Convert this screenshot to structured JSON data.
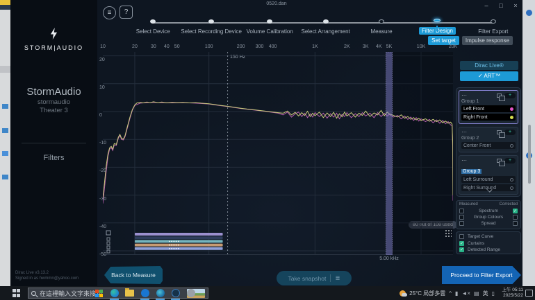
{
  "window": {
    "title": "0520.dan"
  },
  "icons": {
    "menu": "≡",
    "help": "?",
    "minimize": "–",
    "maximize": "□",
    "close": "×",
    "check": "✓",
    "ellipsis": "⋯",
    "plus": "+",
    "snapshot_list": "≣",
    "caret": "^",
    "battery": "▮",
    "mute": "◄×",
    "keyboard": "▤",
    "notebook": "▯"
  },
  "sidebar": {
    "brand": "STORM|AUDIO",
    "title": "StormAudio",
    "subtitle": "stormaudio",
    "theater": "Theater 3",
    "nav_filters": "Filters",
    "version": "Dirac Live v3.13.2",
    "signed_in": "Signed in as hwmmn@yahoo.com"
  },
  "stepper": {
    "steps": [
      {
        "label": "Select Device",
        "status": "done"
      },
      {
        "label": "Select Recording Device",
        "status": "done"
      },
      {
        "label": "Volume Calibration",
        "status": "done"
      },
      {
        "label": "Select Arrangement",
        "status": "done"
      },
      {
        "label": "Measure",
        "status": "todo"
      },
      {
        "label": "Filter Design",
        "status": "current"
      },
      {
        "label": "Filter Export",
        "status": "todo"
      }
    ]
  },
  "subtabs": [
    {
      "label": "Set target",
      "active": true
    },
    {
      "label": "Impulse response",
      "active": false
    }
  ],
  "chart_data": {
    "type": "line",
    "x_axis": {
      "scale": "log",
      "unit": "Hz",
      "min": 10,
      "max": 20000,
      "ticks": [
        "10",
        "20",
        "30",
        "40",
        "50",
        "100",
        "200",
        "300",
        "400",
        "1K",
        "2K",
        "3K",
        "4K",
        "5K",
        "10K",
        "20K"
      ],
      "tick_values": [
        10,
        20,
        30,
        40,
        50,
        100,
        200,
        300,
        400,
        1000,
        2000,
        3000,
        4000,
        5000,
        10000,
        20000
      ]
    },
    "y_axis": {
      "unit": "dB",
      "ticks": [
        20,
        10,
        0,
        -10,
        -20,
        -30,
        -40,
        -50
      ],
      "min": -55,
      "max": 25
    },
    "grid_hz": [
      20,
      100,
      1000,
      10000
    ],
    "cursor": {
      "label": "150 Hz",
      "hz": 150
    },
    "marker": {
      "label": "5.00 kHz",
      "hz": 5000
    },
    "usage_badge": "80 out of 108 used",
    "range_bars": {
      "from_hz": 20,
      "to_hz": 135,
      "colors": [
        "#9b90cf",
        "#2e3d5c",
        "#74b4bd",
        "#c79b72",
        "#8fa0d8"
      ]
    },
    "series": [
      {
        "name": "Left Front",
        "color": "#b75fae",
        "points": [
          [
            10,
            -33
          ],
          [
            10.4,
            -27
          ],
          [
            10.8,
            -21
          ],
          [
            11.2,
            -16
          ],
          [
            11.6,
            -13.5
          ],
          [
            12,
            -13
          ],
          [
            12.4,
            -14
          ],
          [
            12.8,
            -12
          ],
          [
            13.4,
            -12.2
          ],
          [
            14,
            -9.6
          ],
          [
            14.5,
            -8.6
          ],
          [
            15,
            -10
          ],
          [
            15.6,
            -10.2
          ],
          [
            16.2,
            -9
          ],
          [
            17,
            -6
          ],
          [
            18,
            -2.5
          ],
          [
            19,
            0.5
          ],
          [
            20,
            2.2
          ],
          [
            22.5,
            3.0
          ],
          [
            26,
            3.2
          ],
          [
            30,
            3.3
          ],
          [
            36,
            3.2
          ],
          [
            45,
            3.1
          ],
          [
            57,
            3.2
          ],
          [
            75,
            3.0
          ],
          [
            100,
            2.7
          ],
          [
            130,
            2.1
          ],
          [
            150,
            1.8
          ],
          [
            200,
            1.1
          ],
          [
            260,
            0.6
          ],
          [
            350,
            0.0
          ],
          [
            450,
            -0.6
          ],
          [
            500,
            -1.2
          ],
          [
            550,
            -0.2
          ],
          [
            600,
            -2.0
          ],
          [
            650,
            -0.8
          ],
          [
            700,
            -0.2
          ],
          [
            750,
            -1.8
          ],
          [
            800,
            -0.6
          ],
          [
            850,
            -2.2
          ],
          [
            900,
            -0.8
          ],
          [
            950,
            -2.0
          ],
          [
            1000,
            -0.4
          ],
          [
            1100,
            -1.8
          ],
          [
            1200,
            -0.6
          ],
          [
            1300,
            -2.4
          ],
          [
            1400,
            -0.8
          ],
          [
            1500,
            -2.0
          ],
          [
            1600,
            -0.6
          ],
          [
            1700,
            -2.6
          ],
          [
            1800,
            -1.0
          ],
          [
            1900,
            -1.8
          ],
          [
            2000,
            -0.4
          ],
          [
            2200,
            -2.2
          ],
          [
            2400,
            -0.8
          ],
          [
            2600,
            -1.8
          ],
          [
            2800,
            -0.4
          ],
          [
            3000,
            -1.6
          ],
          [
            3300,
            -0.6
          ],
          [
            3600,
            -2.2
          ],
          [
            3900,
            -0.4
          ],
          [
            4200,
            -1.8
          ],
          [
            4500,
            -0.6
          ],
          [
            4800,
            -1.6
          ],
          [
            5000,
            -1.0
          ],
          [
            5500,
            -2.0
          ],
          [
            6000,
            -1.4
          ],
          [
            6500,
            -2.6
          ],
          [
            7000,
            -1.6
          ],
          [
            7500,
            -2.8
          ],
          [
            8000,
            -2.0
          ],
          [
            8500,
            -3.2
          ],
          [
            9000,
            -2.2
          ],
          [
            9500,
            -3.4
          ],
          [
            10000,
            -2.6
          ],
          [
            11000,
            -3.6
          ],
          [
            12000,
            -2.8
          ],
          [
            13000,
            -4.0
          ],
          [
            14000,
            -3.0
          ],
          [
            15000,
            -4.2
          ],
          [
            16000,
            -3.2
          ],
          [
            17000,
            -4.4
          ],
          [
            18000,
            -3.6
          ],
          [
            19000,
            -4.8
          ],
          [
            19600,
            -5.0
          ],
          [
            19900,
            -14
          ],
          [
            20000,
            -32
          ]
        ]
      },
      {
        "name": "Right Front",
        "color": "#c9cb79",
        "points": [
          [
            10,
            -31
          ],
          [
            10.4,
            -25
          ],
          [
            10.8,
            -19
          ],
          [
            11.2,
            -15
          ],
          [
            11.6,
            -13
          ],
          [
            12,
            -12.5
          ],
          [
            12.4,
            -13.5
          ],
          [
            12.8,
            -11.5
          ],
          [
            13.4,
            -11.8
          ],
          [
            14,
            -9.2
          ],
          [
            14.5,
            -8.2
          ],
          [
            15,
            -9.6
          ],
          [
            15.6,
            -9.9
          ],
          [
            16.2,
            -8.6
          ],
          [
            17,
            -5.5
          ],
          [
            18,
            -2
          ],
          [
            19,
            0.8
          ],
          [
            20,
            2.4
          ],
          [
            21,
            3.1
          ],
          [
            22.5,
            3.3
          ],
          [
            24,
            3.1
          ],
          [
            26,
            3.4
          ],
          [
            28,
            3.2
          ],
          [
            30,
            3.5
          ],
          [
            33,
            3.2
          ],
          [
            36,
            3.4
          ],
          [
            40,
            3.1
          ],
          [
            45,
            3.3
          ],
          [
            50,
            3.2
          ],
          [
            57,
            3.3
          ],
          [
            65,
            3.1
          ],
          [
            75,
            3.2
          ],
          [
            85,
            3.0
          ],
          [
            100,
            2.8
          ],
          [
            115,
            2.5
          ],
          [
            130,
            2.2
          ],
          [
            150,
            1.9
          ],
          [
            170,
            1.6
          ],
          [
            200,
            1.2
          ],
          [
            230,
            0.9
          ],
          [
            260,
            0.7
          ],
          [
            300,
            0.4
          ],
          [
            350,
            0.1
          ],
          [
            400,
            -0.2
          ],
          [
            450,
            -0.4
          ],
          [
            500,
            -0.6
          ],
          [
            550,
            0.2
          ],
          [
            600,
            -1.2
          ],
          [
            650,
            -0.3
          ],
          [
            700,
            -1.6
          ],
          [
            750,
            -0.4
          ],
          [
            800,
            -1.4
          ],
          [
            850,
            0.1
          ],
          [
            900,
            -1.8
          ],
          [
            950,
            -0.6
          ],
          [
            1000,
            -1.5
          ],
          [
            1100,
            -0.2
          ],
          [
            1200,
            -2.2
          ],
          [
            1300,
            -0.5
          ],
          [
            1400,
            -1.8
          ],
          [
            1500,
            -0.3
          ],
          [
            1600,
            -2.4
          ],
          [
            1700,
            -0.8
          ],
          [
            1800,
            -1.9
          ],
          [
            1900,
            -0.2
          ],
          [
            2000,
            -1.6
          ],
          [
            2200,
            -0.4
          ],
          [
            2400,
            -2.0
          ],
          [
            2600,
            -0.6
          ],
          [
            2800,
            -1.4
          ],
          [
            3000,
            0.2
          ],
          [
            3300,
            -1.8
          ],
          [
            3600,
            -0.5
          ],
          [
            3900,
            -1.2
          ],
          [
            4200,
            0.4
          ],
          [
            4500,
            -1.5
          ],
          [
            4800,
            -0.2
          ],
          [
            5000,
            -0.8
          ],
          [
            5500,
            -1.4
          ],
          [
            6000,
            -2.0
          ],
          [
            6500,
            -1.2
          ],
          [
            7000,
            -2.4
          ],
          [
            7500,
            -1.8
          ],
          [
            8000,
            -2.8
          ],
          [
            8500,
            -2.2
          ],
          [
            9000,
            -3.0
          ],
          [
            9500,
            -2.4
          ],
          [
            10000,
            -3.2
          ],
          [
            11000,
            -2.6
          ],
          [
            12000,
            -3.5
          ],
          [
            13000,
            -2.8
          ],
          [
            14000,
            -3.6
          ],
          [
            15000,
            -3.0
          ],
          [
            16000,
            -4.0
          ],
          [
            17000,
            -3.4
          ],
          [
            18000,
            -4.2
          ],
          [
            19000,
            -3.8
          ],
          [
            19600,
            -4.5
          ],
          [
            19900,
            -12
          ],
          [
            20000,
            -30
          ]
        ]
      }
    ]
  },
  "right_panel": {
    "dirac_button": "Dirac Live®",
    "art_button": "ART™",
    "groups": [
      {
        "name": "Group 1",
        "highlight": true,
        "channels": [
          {
            "label": "Left Front",
            "dot": "#e254c8",
            "selected": true
          },
          {
            "label": "Right Front",
            "dot": "#d6de4e",
            "selected": true
          }
        ]
      },
      {
        "name": "Group 2",
        "channels": [
          {
            "label": "Center Front",
            "dot": null
          }
        ]
      },
      {
        "name": "Group 3",
        "name_editing": true,
        "channels": [
          {
            "label": "Left Surround",
            "dot": null
          },
          {
            "label": "Right Surround",
            "dot": null
          }
        ]
      },
      {
        "name": "",
        "partial": true,
        "channels": []
      }
    ],
    "measured_corrected": {
      "headers": [
        "Measured",
        "Corrected"
      ],
      "rows": [
        {
          "label": "Spectrum",
          "measured": false,
          "corrected": true
        },
        {
          "label": "Group Colours",
          "measured": false,
          "corrected": false
        },
        {
          "label": "Spread",
          "measured": false,
          "corrected": false
        }
      ]
    },
    "display_options": [
      {
        "label": "Target Curve",
        "checked": false
      },
      {
        "label": "Curtains",
        "checked": true
      },
      {
        "label": "Detected Range",
        "checked": true
      }
    ]
  },
  "footer": {
    "back_label": "Back to Measure",
    "snapshot_label": "Take snapshot",
    "proceed_label": "Proceed to Filter Export"
  },
  "taskbar": {
    "search_placeholder": "在這裡輸入文字來搜尋",
    "weather": "25°C 局部多雲",
    "ime": "英",
    "time": "上午 05:11",
    "date": "2025/5/22",
    "app_icons": [
      {
        "name": "office-icon",
        "type": "office",
        "active": false
      },
      {
        "name": "edge-icon",
        "type": "edge",
        "active": true
      },
      {
        "name": "explorer-icon",
        "type": "folder",
        "active": false
      },
      {
        "name": "outlook-icon",
        "type": "outlook",
        "active": true
      },
      {
        "name": "teams-icon",
        "type": "teal",
        "active": true
      },
      {
        "name": "dirac-icon",
        "type": "dirac",
        "active": true
      },
      {
        "name": "settings-icon",
        "type": "gray",
        "active": false
      }
    ]
  }
}
